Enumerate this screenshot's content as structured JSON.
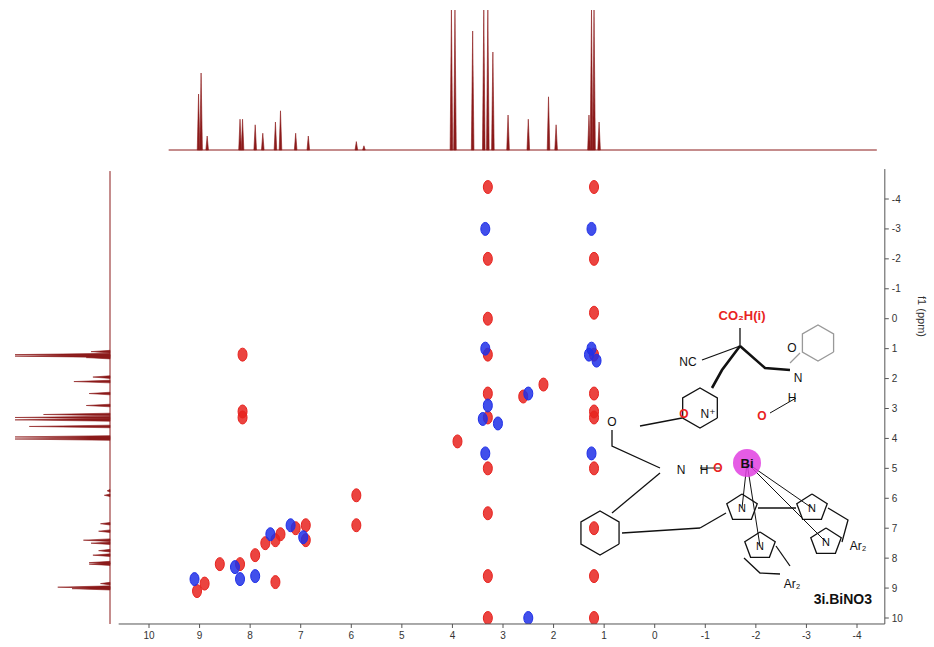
{
  "chart_data": {
    "type": "contour",
    "y_label": "f1 (ppm)",
    "xlim": [
      10.6,
      -4.55
    ],
    "ylim": [
      -5,
      10.2
    ],
    "xticks": [
      10,
      9,
      8,
      7,
      6,
      5,
      4,
      3,
      2,
      1,
      0,
      -1,
      -2,
      -3,
      -4
    ],
    "yticks": [
      -4,
      -3,
      -2,
      -1,
      0,
      1,
      2,
      3,
      4,
      5,
      6,
      7,
      8,
      9,
      10
    ],
    "series": [
      {
        "color": "#e8231f",
        "x": [
          9.05,
          8.9,
          8.2,
          8.15,
          8.15,
          8.15,
          7.9,
          7.7,
          7.5,
          7.4,
          7.1,
          6.9,
          5.9,
          5.9,
          8.6,
          3.3,
          2.6,
          2.2,
          1.2,
          1.2,
          1.2,
          3.3,
          3.3,
          1.2,
          3.9,
          7.5,
          6.9,
          3.3,
          3.3,
          3.3,
          3.3,
          3.3,
          3.3,
          3.3,
          1.2,
          1.2,
          1.2,
          1.2,
          1.2,
          1.2,
          1.2
        ],
        "values": [
          9.1,
          8.85,
          8.2,
          1.2,
          3.1,
          3.3,
          7.9,
          7.5,
          7.4,
          7.2,
          7.0,
          6.9,
          5.9,
          6.9,
          8.2,
          3.3,
          2.6,
          2.2,
          1.2,
          3.1,
          3.3,
          1.2,
          8.6,
          8.6,
          4.1,
          8.8,
          7.4,
          -4.4,
          -2,
          0,
          2.5,
          5,
          6.5,
          10,
          -4.4,
          -2,
          -0.2,
          2.5,
          5,
          7,
          10
        ]
      },
      {
        "color": "#2030e8",
        "x": [
          9.1,
          8.2,
          7.9,
          7.6,
          7.2,
          3.4,
          3.1,
          1.3,
          1.15,
          3.3,
          8.3,
          6.95,
          3.35,
          3.35,
          3.35,
          1.25,
          1.25,
          1.25,
          2.5,
          2.5
        ],
        "values": [
          8.7,
          8.7,
          8.6,
          7.2,
          6.9,
          3.35,
          3.5,
          1.2,
          1.4,
          2.9,
          8.3,
          7.3,
          -3,
          1,
          4.5,
          -3,
          1,
          4.5,
          2.5,
          10
        ]
      }
    ],
    "projection": {
      "color": "#8b1a1a",
      "x": [
        9.02,
        8.97,
        8.85,
        8.2,
        8.15,
        7.9,
        7.75,
        7.5,
        7.4,
        7.1,
        6.85,
        5.9,
        5.75,
        4.02,
        3.95,
        3.6,
        3.38,
        3.3,
        3.2,
        2.9,
        2.5,
        2.1,
        1.95,
        1.3,
        1.25,
        1.2,
        1.1
      ],
      "values": [
        40,
        55,
        10,
        22,
        22,
        18,
        12,
        20,
        28,
        12,
        10,
        6,
        3,
        100,
        100,
        85,
        100,
        100,
        70,
        25,
        22,
        38,
        18,
        25,
        100,
        100,
        20
      ]
    },
    "structure": {
      "label": "3i.BiNO3",
      "atoms": [
        "CO₂H(i)",
        "NC",
        "O",
        "N",
        "H",
        "O",
        "N",
        "H",
        "O",
        "N⁺",
        "O",
        "O",
        "Bi",
        "N",
        "N",
        "N",
        "N",
        "Ar₂",
        "Ar₂"
      ]
    }
  }
}
